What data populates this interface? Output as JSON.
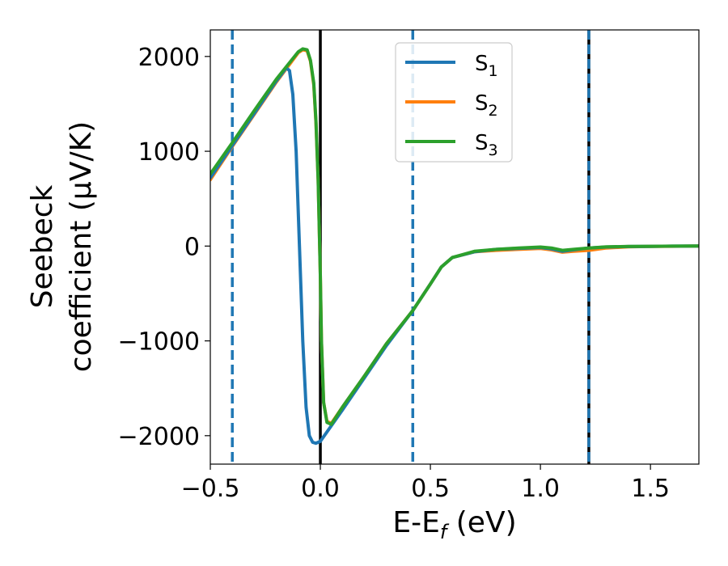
{
  "chart_data": {
    "type": "line",
    "xlabel_parts": [
      "E-E",
      "f",
      " (eV)"
    ],
    "ylabel_lines": [
      "Seebeck",
      "coefficient  (μV/K)"
    ],
    "xlim": [
      -0.5,
      1.72
    ],
    "ylim": [
      -2300,
      2280
    ],
    "xticks": [
      -0.5,
      0.0,
      0.5,
      1.0,
      1.5
    ],
    "xtick_labels": [
      "−0.5",
      "0.0",
      "0.5",
      "1.0",
      "1.5"
    ],
    "yticks": [
      -2000,
      -1000,
      0,
      1000,
      2000
    ],
    "ytick_labels": [
      "−2000",
      "−1000",
      "0",
      "1000",
      "2000"
    ],
    "grid": false,
    "legend_position": "top-center",
    "vertical_lines": [
      {
        "x": -0.4,
        "style": "dashed",
        "color": "#1f77b4"
      },
      {
        "x": 0.0,
        "style": "solid",
        "color": "#000000"
      },
      {
        "x": 0.42,
        "style": "dashed",
        "color": "#1f77b4"
      },
      {
        "x": 1.22,
        "style": "solid",
        "color": "#000000"
      },
      {
        "x": 1.22,
        "style": "dashed",
        "color": "#1f77b4"
      }
    ],
    "series": [
      {
        "name": "S",
        "subscript": "1",
        "color": "#1f77b4",
        "x": [
          -0.5,
          -0.4,
          -0.3,
          -0.2,
          -0.155,
          -0.14,
          -0.125,
          -0.11,
          -0.095,
          -0.08,
          -0.065,
          -0.05,
          -0.035,
          -0.02,
          -0.01,
          0.0,
          0.1,
          0.2,
          0.3,
          0.42,
          0.5,
          0.55,
          0.6,
          0.7,
          0.8,
          0.9,
          1.0,
          1.05,
          1.1,
          1.15,
          1.22,
          1.3,
          1.4,
          1.5,
          1.6,
          1.72
        ],
        "values": [
          720,
          1060,
          1400,
          1740,
          1880,
          1850,
          1600,
          1000,
          0,
          -1000,
          -1700,
          -2000,
          -2070,
          -2080,
          -2070,
          -2060,
          -1730,
          -1390,
          -1050,
          -680,
          -400,
          -220,
          -120,
          -60,
          -35,
          -25,
          -15,
          -30,
          -55,
          -40,
          -20,
          -10,
          -5,
          -3,
          -1,
          0
        ]
      },
      {
        "name": "S",
        "subscript": "2",
        "color": "#ff7f0e",
        "x": [
          -0.5,
          -0.4,
          -0.3,
          -0.2,
          -0.1,
          -0.08,
          -0.06,
          -0.045,
          -0.03,
          -0.02,
          -0.01,
          0.0,
          0.005,
          0.015,
          0.03,
          0.05,
          0.1,
          0.2,
          0.3,
          0.42,
          0.5,
          0.55,
          0.6,
          0.7,
          0.8,
          0.9,
          1.0,
          1.05,
          1.1,
          1.15,
          1.22,
          1.3,
          1.4,
          1.5,
          1.6,
          1.72
        ],
        "values": [
          700,
          1050,
          1390,
          1730,
          2040,
          2070,
          2060,
          1950,
          1700,
          1300,
          700,
          -300,
          -1000,
          -1650,
          -1850,
          -1870,
          -1700,
          -1370,
          -1030,
          -680,
          -400,
          -220,
          -120,
          -60,
          -45,
          -35,
          -25,
          -40,
          -65,
          -55,
          -45,
          -20,
          -8,
          -4,
          -2,
          0
        ]
      },
      {
        "name": "S",
        "subscript": "3",
        "color": "#2ca02c",
        "x": [
          -0.5,
          -0.4,
          -0.3,
          -0.2,
          -0.1,
          -0.08,
          -0.06,
          -0.045,
          -0.03,
          -0.02,
          -0.01,
          0.0,
          0.005,
          0.015,
          0.03,
          0.05,
          0.1,
          0.2,
          0.3,
          0.42,
          0.5,
          0.55,
          0.6,
          0.7,
          0.8,
          0.9,
          1.0,
          1.05,
          1.1,
          1.15,
          1.22,
          1.3,
          1.4,
          1.5,
          1.6,
          1.72
        ],
        "values": [
          760,
          1090,
          1430,
          1760,
          2050,
          2080,
          2070,
          1960,
          1720,
          1320,
          700,
          -300,
          -1000,
          -1650,
          -1860,
          -1880,
          -1700,
          -1370,
          -1030,
          -680,
          -400,
          -220,
          -120,
          -55,
          -35,
          -20,
          -10,
          -20,
          -45,
          -35,
          -20,
          -8,
          -4,
          -2,
          -1,
          0
        ]
      }
    ]
  }
}
